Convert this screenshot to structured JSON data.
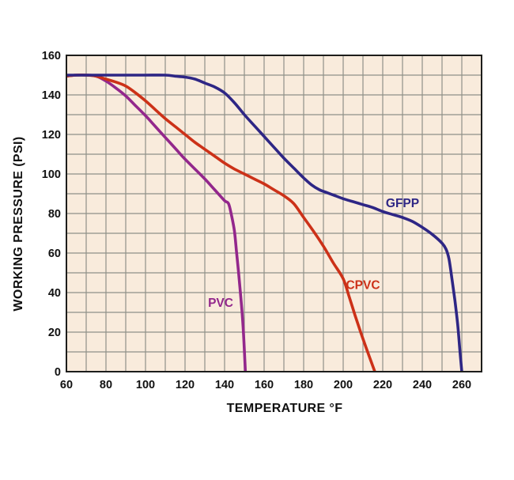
{
  "page": {
    "background_color": "#ffffff"
  },
  "chart_data": {
    "type": "line",
    "title": "",
    "xlabel": "TEMPERATURE °F",
    "ylabel": "WORKING PRESSURE (PSI)",
    "x_axis": {
      "min": 60,
      "max": 270,
      "grid_step": 10,
      "tick_labels": [
        60,
        80,
        100,
        120,
        140,
        160,
        180,
        200,
        220,
        240,
        260
      ]
    },
    "y_axis": {
      "min": 0,
      "max": 160,
      "grid_step": 10,
      "tick_labels": [
        0,
        20,
        40,
        60,
        80,
        100,
        120,
        140,
        160
      ]
    },
    "grid": true,
    "legend_position": "inline-annotations",
    "colors": {
      "plot_background": "#f9ebdc",
      "grid_line": "#8f9088",
      "plot_border": "#1d1d1b",
      "axis_text": "#111111"
    },
    "series": [
      {
        "name": "PVC",
        "color": "#93278c",
        "label_anchor": {
          "x": 138,
          "y": 35
        },
        "points": [
          [
            60,
            149.5
          ],
          [
            65,
            150
          ],
          [
            70,
            150
          ],
          [
            75,
            149.5
          ],
          [
            80,
            147
          ],
          [
            85,
            143.5
          ],
          [
            90,
            139.5
          ],
          [
            95,
            134.5
          ],
          [
            100,
            129.5
          ],
          [
            105,
            124
          ],
          [
            110,
            118.5
          ],
          [
            115,
            113
          ],
          [
            120,
            107.5
          ],
          [
            125,
            102.5
          ],
          [
            130,
            97.5
          ],
          [
            135,
            92
          ],
          [
            140,
            86.5
          ],
          [
            142,
            85
          ],
          [
            143.5,
            79
          ],
          [
            145,
            71
          ],
          [
            146,
            61
          ],
          [
            147,
            51
          ],
          [
            148,
            40
          ],
          [
            149,
            28
          ],
          [
            149.8,
            15
          ],
          [
            150.5,
            0
          ]
        ]
      },
      {
        "name": "CPVC",
        "color": "#cc3118",
        "label_anchor": {
          "x": 210,
          "y": 44
        },
        "points": [
          [
            60,
            149.5
          ],
          [
            65,
            150
          ],
          [
            70,
            150
          ],
          [
            75,
            149.5
          ],
          [
            80,
            148
          ],
          [
            85,
            146.5
          ],
          [
            90,
            144.5
          ],
          [
            95,
            141
          ],
          [
            100,
            137
          ],
          [
            105,
            132.5
          ],
          [
            110,
            128
          ],
          [
            115,
            124
          ],
          [
            120,
            120
          ],
          [
            125,
            116
          ],
          [
            130,
            112.5
          ],
          [
            135,
            109
          ],
          [
            140,
            105.5
          ],
          [
            145,
            102.5
          ],
          [
            150,
            100
          ],
          [
            155,
            97.5
          ],
          [
            160,
            95
          ],
          [
            165,
            92
          ],
          [
            170,
            89
          ],
          [
            175,
            85
          ],
          [
            180,
            78
          ],
          [
            185,
            71
          ],
          [
            190,
            63.5
          ],
          [
            195,
            55
          ],
          [
            200,
            47
          ],
          [
            203,
            38
          ],
          [
            206,
            28.5
          ],
          [
            209,
            19.5
          ],
          [
            212,
            11
          ],
          [
            216,
            0
          ]
        ]
      },
      {
        "name": "GFPP",
        "color": "#2e2685",
        "label_anchor": {
          "x": 230,
          "y": 85.5
        },
        "points": [
          [
            60,
            150
          ],
          [
            70,
            150
          ],
          [
            80,
            150
          ],
          [
            90,
            150
          ],
          [
            100,
            150
          ],
          [
            110,
            150
          ],
          [
            115,
            149.5
          ],
          [
            120,
            149
          ],
          [
            125,
            148
          ],
          [
            130,
            146
          ],
          [
            135,
            144
          ],
          [
            140,
            141
          ],
          [
            145,
            136
          ],
          [
            150,
            130
          ],
          [
            155,
            124.5
          ],
          [
            160,
            119
          ],
          [
            165,
            113.5
          ],
          [
            170,
            108
          ],
          [
            175,
            103
          ],
          [
            180,
            98
          ],
          [
            184,
            94.5
          ],
          [
            188,
            92
          ],
          [
            192,
            90.5
          ],
          [
            196,
            89
          ],
          [
            200,
            87.5
          ],
          [
            205,
            86
          ],
          [
            210,
            84.5
          ],
          [
            215,
            83
          ],
          [
            220,
            81
          ],
          [
            225,
            79.5
          ],
          [
            230,
            78
          ],
          [
            235,
            76
          ],
          [
            240,
            73
          ],
          [
            245,
            69.5
          ],
          [
            250,
            65
          ],
          [
            252,
            62
          ],
          [
            253.5,
            57
          ],
          [
            255,
            47
          ],
          [
            256.5,
            36
          ],
          [
            258,
            23
          ],
          [
            259,
            11
          ],
          [
            260,
            0
          ]
        ]
      }
    ]
  }
}
